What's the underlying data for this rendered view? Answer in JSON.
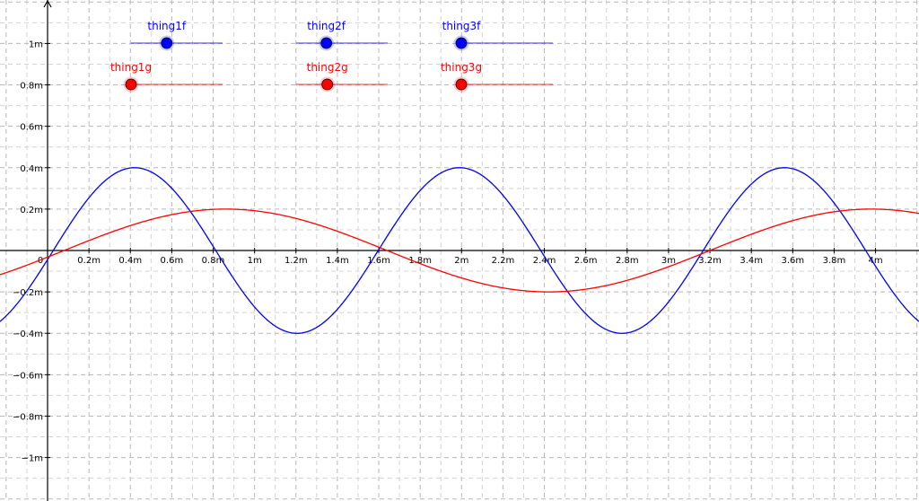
{
  "chart_data": {
    "type": "line",
    "title": "",
    "xlabel": "",
    "ylabel": "",
    "xlim": [
      -0.23,
      4.21
    ],
    "ylim": [
      -1.21,
      1.21
    ],
    "grid": true,
    "x_ticks": [
      {
        "value": 0,
        "label": "0"
      },
      {
        "value": 0.2,
        "label": "0.2m"
      },
      {
        "value": 0.4,
        "label": "0.4m"
      },
      {
        "value": 0.6,
        "label": "0.6m"
      },
      {
        "value": 0.8,
        "label": "0.8m"
      },
      {
        "value": 1.0,
        "label": "1m"
      },
      {
        "value": 1.2,
        "label": "1.2m"
      },
      {
        "value": 1.4,
        "label": "1.4m"
      },
      {
        "value": 1.6,
        "label": "1.6m"
      },
      {
        "value": 1.8,
        "label": "1.8m"
      },
      {
        "value": 2.0,
        "label": "2m"
      },
      {
        "value": 2.2,
        "label": "2.2m"
      },
      {
        "value": 2.4,
        "label": "2.4m"
      },
      {
        "value": 2.6,
        "label": "2.6m"
      },
      {
        "value": 2.8,
        "label": "2.8m"
      },
      {
        "value": 3.0,
        "label": "3m"
      },
      {
        "value": 3.2,
        "label": "3.2m"
      },
      {
        "value": 3.4,
        "label": "3.4m"
      },
      {
        "value": 3.6,
        "label": "3.6m"
      },
      {
        "value": 3.8,
        "label": "3.8m"
      },
      {
        "value": 4.0,
        "label": "4m"
      }
    ],
    "y_ticks": [
      {
        "value": 1.0,
        "label": "1m"
      },
      {
        "value": 0.8,
        "label": "0.8m"
      },
      {
        "value": 0.6,
        "label": "0.6m"
      },
      {
        "value": 0.4,
        "label": "0.4m"
      },
      {
        "value": 0.2,
        "label": "0.2m"
      },
      {
        "value": -0.2,
        "label": "−0.2m"
      },
      {
        "value": -0.4,
        "label": "−0.4m"
      },
      {
        "value": -0.6,
        "label": "−0.6m"
      },
      {
        "value": -0.8,
        "label": "−0.8m"
      },
      {
        "value": -1.0,
        "label": "−1m"
      }
    ],
    "series": [
      {
        "color": "#0000ff",
        "amplitude": 0.4,
        "period": 1.57,
        "phase_x": 0.0275,
        "x": [
          -0.23,
          -0.1,
          0.0,
          0.1,
          0.2,
          0.3,
          0.42,
          0.5,
          0.6,
          0.7,
          0.8,
          0.9,
          1.0,
          1.1,
          1.2,
          1.3,
          1.4,
          1.5,
          1.6,
          1.7,
          1.8,
          1.9,
          1.99,
          2.1,
          2.2,
          2.3,
          2.4,
          2.5,
          2.6,
          2.7,
          2.78,
          2.9,
          3.0,
          3.1,
          3.2,
          3.3,
          3.4,
          3.5,
          3.56,
          3.7,
          3.8,
          3.9,
          4.0,
          4.1,
          4.21
        ],
        "y": [
          -0.346,
          -0.196,
          -0.027,
          0.145,
          0.285,
          0.374,
          0.399,
          0.381,
          0.304,
          0.179,
          0.027,
          -0.128,
          -0.264,
          -0.358,
          -0.398,
          -0.378,
          -0.302,
          -0.178,
          -0.025,
          0.13,
          0.266,
          0.361,
          0.4,
          0.372,
          0.29,
          0.162,
          0.011,
          -0.143,
          -0.278,
          -0.37,
          -0.398,
          -0.37,
          -0.292,
          -0.167,
          -0.015,
          0.139,
          0.273,
          0.365,
          0.399,
          0.367,
          0.285,
          0.16,
          0.012,
          -0.146,
          -0.34
        ]
      },
      {
        "color": "#ff0000",
        "amplitude": 0.2,
        "period": 3.12,
        "phase_x": 0.08,
        "x": [
          -0.23,
          -0.1,
          0.0,
          0.1,
          0.2,
          0.3,
          0.4,
          0.5,
          0.6,
          0.7,
          0.86,
          1.0,
          1.1,
          1.2,
          1.3,
          1.4,
          1.5,
          1.6,
          1.7,
          1.8,
          1.9,
          2.0,
          2.1,
          2.2,
          2.3,
          2.42,
          2.5,
          2.6,
          2.7,
          2.8,
          2.9,
          3.0,
          3.1,
          3.2,
          3.3,
          3.4,
          3.5,
          3.6,
          3.7,
          3.8,
          3.98,
          4.1,
          4.21
        ],
        "y": [
          -0.123,
          -0.071,
          -0.032,
          0.008,
          0.047,
          0.084,
          0.118,
          0.147,
          0.171,
          0.187,
          0.2,
          0.193,
          0.181,
          0.163,
          0.138,
          0.108,
          0.074,
          0.037,
          -0.002,
          -0.041,
          -0.078,
          -0.112,
          -0.142,
          -0.166,
          -0.185,
          -0.2,
          -0.198,
          -0.19,
          -0.174,
          -0.153,
          -0.126,
          -0.095,
          -0.06,
          -0.022,
          0.016,
          0.054,
          0.09,
          0.123,
          0.152,
          0.175,
          0.2,
          0.196,
          0.185
        ]
      }
    ]
  },
  "sliders": [
    {
      "label": "thing1f",
      "color": "#0000ff",
      "value": 0.39
    },
    {
      "label": "thing2f",
      "color": "#0000ff",
      "value": 0.33
    },
    {
      "label": "thing3f",
      "color": "#0000ff",
      "value": 0.0
    },
    {
      "label": "thing1g",
      "color": "#ff0000",
      "value": 0.0
    },
    {
      "label": "thing2g",
      "color": "#ff0000",
      "value": 0.34
    },
    {
      "label": "thing3g",
      "color": "#ff0000",
      "value": 0.0
    }
  ]
}
